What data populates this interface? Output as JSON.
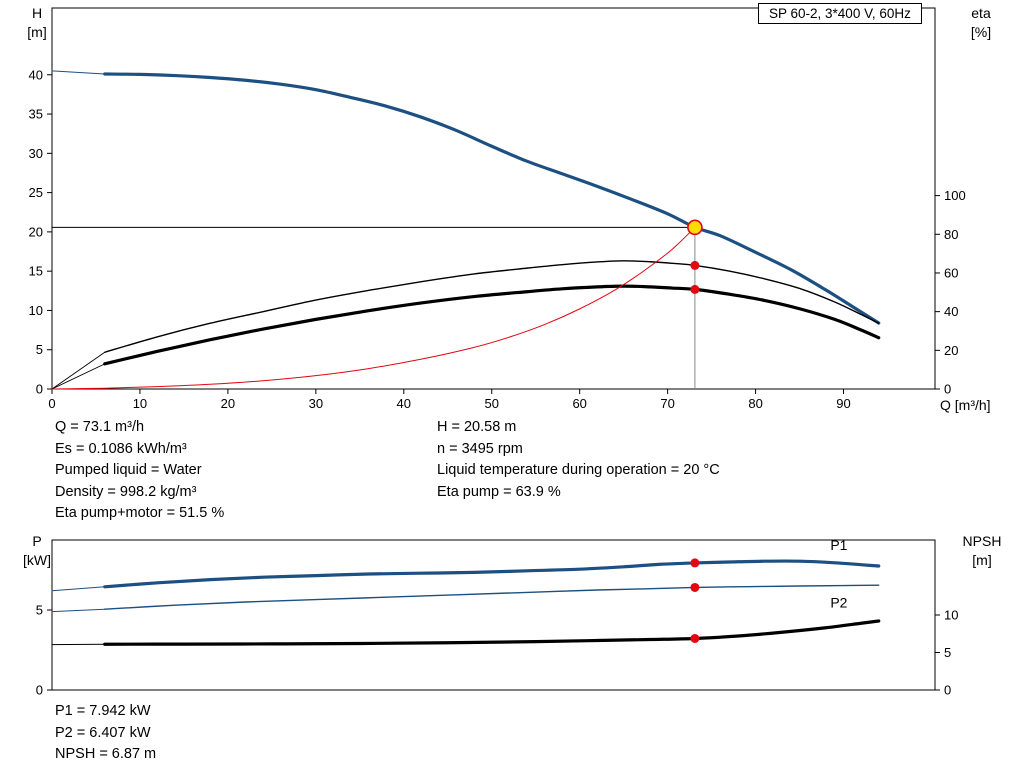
{
  "info_top_left": [
    "Q = 73.1 m³/h",
    "Es = 0.1086 kWh/m³",
    "Pumped liquid = Water",
    "Density = 998.2 kg/m³",
    "Eta pump+motor = 51.5 %"
  ],
  "info_top_right": [
    "H = 20.58 m",
    "n = 3495 rpm",
    "Liquid temperature during operation = 20 °C",
    "Eta pump = 63.9 %"
  ],
  "info_bottom": [
    "P1 = 7.942 kW",
    "P2 = 6.407 kW",
    "NPSH = 6.87 m"
  ],
  "colors": {
    "curve_blue": "#1c4f82",
    "label_blue": "#2e6fb0",
    "red": "#e30613",
    "marker_yellow": "#ffdd00",
    "black": "#000000",
    "gray": "#8a8a8a"
  },
  "chart_data": [
    {
      "type": "line",
      "title": "SP 60-2, 3*400 V, 60Hz",
      "x": {
        "label": "Q [m³/h]",
        "min": 0,
        "max": 100.4,
        "ticks": [
          0,
          10,
          20,
          30,
          40,
          50,
          60,
          70,
          80,
          90
        ]
      },
      "y_left": {
        "title": [
          "H",
          "[m]"
        ],
        "min": 0,
        "max": 48.5,
        "ticks": [
          0,
          5,
          10,
          15,
          20,
          25,
          30,
          35,
          40
        ]
      },
      "y_right": {
        "title": [
          "eta",
          "[%]"
        ],
        "min": 0,
        "max": 197,
        "ticks": [
          0,
          20,
          40,
          60,
          80,
          100
        ]
      },
      "lines": [
        {
          "name": "duty-head-line",
          "type": "h",
          "axis": "left",
          "value": 20.58,
          "q0": 0,
          "q1": 73.1,
          "color": "#000000",
          "width": 1
        },
        {
          "name": "duty-flow-line",
          "type": "v",
          "axis": "left",
          "q": 73.1,
          "v0": 0,
          "v1": 20.58,
          "color": "#8a8a8a",
          "width": 1
        }
      ],
      "series": [
        {
          "name": "head-curve",
          "axis": "left",
          "color": "#1c4f82",
          "width": 3.2,
          "points": [
            [
              6,
              40.1
            ],
            [
              10,
              40.05
            ],
            [
              14,
              39.9
            ],
            [
              18,
              39.65
            ],
            [
              22,
              39.3
            ],
            [
              26,
              38.8
            ],
            [
              30,
              38.1
            ],
            [
              34,
              37.1
            ],
            [
              38,
              36.0
            ],
            [
              42,
              34.6
            ],
            [
              46,
              32.9
            ],
            [
              50,
              30.9
            ],
            [
              54,
              29.0
            ],
            [
              58,
              27.4
            ],
            [
              62,
              25.8
            ],
            [
              66,
              24.1
            ],
            [
              70,
              22.3
            ],
            [
              73.1,
              20.58
            ],
            [
              76,
              19.5
            ],
            [
              80,
              17.4
            ],
            [
              84,
              15.2
            ],
            [
              88,
              12.6
            ],
            [
              91,
              10.5
            ],
            [
              94,
              8.4
            ]
          ]
        },
        {
          "name": "head-leader",
          "axis": "left",
          "color": "#1c4f82",
          "width": 1,
          "points": [
            [
              0,
              40.5
            ],
            [
              6,
              40.1
            ]
          ]
        },
        {
          "name": "eta-pump-curve",
          "axis": "right",
          "color": "#000000",
          "width": 1.4,
          "points": [
            [
              6,
              19
            ],
            [
              12,
              27
            ],
            [
              18,
              34
            ],
            [
              24,
              40
            ],
            [
              30,
              46
            ],
            [
              36,
              51
            ],
            [
              42,
              55.5
            ],
            [
              48,
              59.5
            ],
            [
              54,
              62.5
            ],
            [
              58,
              64.3
            ],
            [
              62,
              65.7
            ],
            [
              65,
              66.3
            ],
            [
              68,
              65.8
            ],
            [
              70.5,
              65
            ],
            [
              73.1,
              63.9
            ],
            [
              77,
              61
            ],
            [
              81,
              57
            ],
            [
              85,
              52
            ],
            [
              89,
              45
            ],
            [
              92,
              38.5
            ],
            [
              94,
              34
            ]
          ]
        },
        {
          "name": "eta-pump-leader",
          "axis": "right",
          "color": "#000000",
          "width": 0.9,
          "points": [
            [
              0,
              0
            ],
            [
              6,
              19
            ]
          ]
        },
        {
          "name": "eta-pump-motor-curve",
          "axis": "right",
          "color": "#000000",
          "width": 3.2,
          "points": [
            [
              6,
              13
            ],
            [
              12,
              19.5
            ],
            [
              18,
              25.5
            ],
            [
              24,
              31
            ],
            [
              30,
              36
            ],
            [
              36,
              40.5
            ],
            [
              42,
              44.5
            ],
            [
              48,
              47.8
            ],
            [
              54,
              50.3
            ],
            [
              58,
              51.8
            ],
            [
              62,
              52.8
            ],
            [
              65,
              53.2
            ],
            [
              68,
              52.8
            ],
            [
              70.5,
              52.2
            ],
            [
              73.1,
              51.5
            ],
            [
              77,
              49
            ],
            [
              81,
              45.8
            ],
            [
              85,
              41.5
            ],
            [
              89,
              36
            ],
            [
              92,
              30.5
            ],
            [
              94,
              26.5
            ]
          ]
        },
        {
          "name": "eta-pump-motor-leader",
          "axis": "right",
          "color": "#000000",
          "width": 0.9,
          "points": [
            [
              0,
              0
            ],
            [
              6,
              13
            ]
          ]
        },
        {
          "name": "system-curve",
          "axis": "left",
          "color": "#e30613",
          "width": 1,
          "points": [
            [
              0,
              0
            ],
            [
              6,
              0.1
            ],
            [
              12,
              0.3
            ],
            [
              18,
              0.6
            ],
            [
              24,
              1.05
            ],
            [
              30,
              1.7
            ],
            [
              36,
              2.6
            ],
            [
              42,
              3.8
            ],
            [
              48,
              5.3
            ],
            [
              52,
              6.6
            ],
            [
              56,
              8.2
            ],
            [
              60,
              10.2
            ],
            [
              64,
              12.6
            ],
            [
              67,
              14.8
            ],
            [
              70,
              17.3
            ],
            [
              71.5,
              18.8
            ],
            [
              73.1,
              20.58
            ]
          ]
        }
      ],
      "points": [
        {
          "name": "operating-point",
          "q": 73.1,
          "value": 20.58,
          "axis": "left",
          "r": 7,
          "fill": "#ffdd00",
          "stroke": "#e30613"
        },
        {
          "name": "eta-pump-point",
          "q": 73.1,
          "value": 63.9,
          "axis": "right",
          "r": 4.5,
          "fill": "#e30613"
        },
        {
          "name": "eta-pump-motor-point",
          "q": 73.1,
          "value": 51.5,
          "axis": "right",
          "r": 4.5,
          "fill": "#e30613"
        }
      ],
      "labels": []
    },
    {
      "type": "line",
      "title": "",
      "x": {
        "label": "",
        "min": 0,
        "max": 100.4,
        "ticks": []
      },
      "y_left": {
        "title": [
          "P",
          "[kW]"
        ],
        "min": 0,
        "max": 9.375,
        "ticks": [
          0,
          5
        ]
      },
      "y_right": {
        "title": [
          "NPSH",
          "[m]"
        ],
        "min": 0,
        "max": 20,
        "ticks": [
          0,
          5,
          10
        ]
      },
      "lines": [],
      "series": [
        {
          "name": "p1-curve",
          "axis": "left",
          "color": "#1c4f82",
          "width": 3.2,
          "points": [
            [
              6,
              6.45
            ],
            [
              12,
              6.7
            ],
            [
              18,
              6.9
            ],
            [
              24,
              7.05
            ],
            [
              30,
              7.15
            ],
            [
              36,
              7.25
            ],
            [
              42,
              7.3
            ],
            [
              48,
              7.35
            ],
            [
              54,
              7.45
            ],
            [
              60,
              7.55
            ],
            [
              65,
              7.7
            ],
            [
              69,
              7.85
            ],
            [
              73.1,
              7.94
            ],
            [
              77,
              8.0
            ],
            [
              81,
              8.05
            ],
            [
              85,
              8.05
            ],
            [
              89,
              7.95
            ],
            [
              94,
              7.75
            ]
          ]
        },
        {
          "name": "p1-leader",
          "axis": "left",
          "color": "#1c4f82",
          "width": 1,
          "points": [
            [
              0,
              6.2
            ],
            [
              6,
              6.45
            ]
          ]
        },
        {
          "name": "p2-curve",
          "axis": "left",
          "color": "#1c4f82",
          "width": 1.4,
          "points": [
            [
              6,
              5.05
            ],
            [
              14,
              5.3
            ],
            [
              22,
              5.5
            ],
            [
              30,
              5.65
            ],
            [
              38,
              5.8
            ],
            [
              46,
              5.95
            ],
            [
              54,
              6.1
            ],
            [
              62,
              6.25
            ],
            [
              68,
              6.33
            ],
            [
              73.1,
              6.41
            ],
            [
              79,
              6.46
            ],
            [
              85,
              6.5
            ],
            [
              90,
              6.53
            ],
            [
              94,
              6.55
            ]
          ]
        },
        {
          "name": "p2-leader",
          "axis": "left",
          "color": "#1c4f82",
          "width": 1,
          "points": [
            [
              0,
              4.9
            ],
            [
              6,
              5.05
            ]
          ]
        },
        {
          "name": "npsh-curve",
          "axis": "right",
          "color": "#000000",
          "width": 3.2,
          "points": [
            [
              6,
              6.1
            ],
            [
              15,
              6.12
            ],
            [
              25,
              6.15
            ],
            [
              35,
              6.2
            ],
            [
              45,
              6.3
            ],
            [
              55,
              6.45
            ],
            [
              62,
              6.6
            ],
            [
              68,
              6.73
            ],
            [
              73.1,
              6.87
            ],
            [
              78,
              7.2
            ],
            [
              83,
              7.7
            ],
            [
              88,
              8.3
            ],
            [
              92,
              8.9
            ],
            [
              94,
              9.2
            ]
          ]
        },
        {
          "name": "npsh-leader",
          "axis": "right",
          "color": "#000000",
          "width": 1,
          "points": [
            [
              0,
              6.05
            ],
            [
              6,
              6.1
            ]
          ]
        }
      ],
      "points": [
        {
          "name": "p1-point",
          "q": 73.1,
          "value": 7.942,
          "axis": "left",
          "r": 4.5,
          "fill": "#e30613"
        },
        {
          "name": "p2-point",
          "q": 73.1,
          "value": 6.407,
          "axis": "left",
          "r": 4.5,
          "fill": "#e30613"
        },
        {
          "name": "npsh-point",
          "q": 73.1,
          "value": 6.87,
          "axis": "right",
          "r": 4.5,
          "fill": "#e30613"
        }
      ],
      "labels": [
        {
          "text": "P1",
          "q": 88.5,
          "value": 8.75,
          "axis": "left",
          "color": "#2e6fb0"
        },
        {
          "text": "P2",
          "q": 88.5,
          "value": 5.15,
          "axis": "left",
          "color": "#2e6fb0"
        }
      ]
    }
  ]
}
